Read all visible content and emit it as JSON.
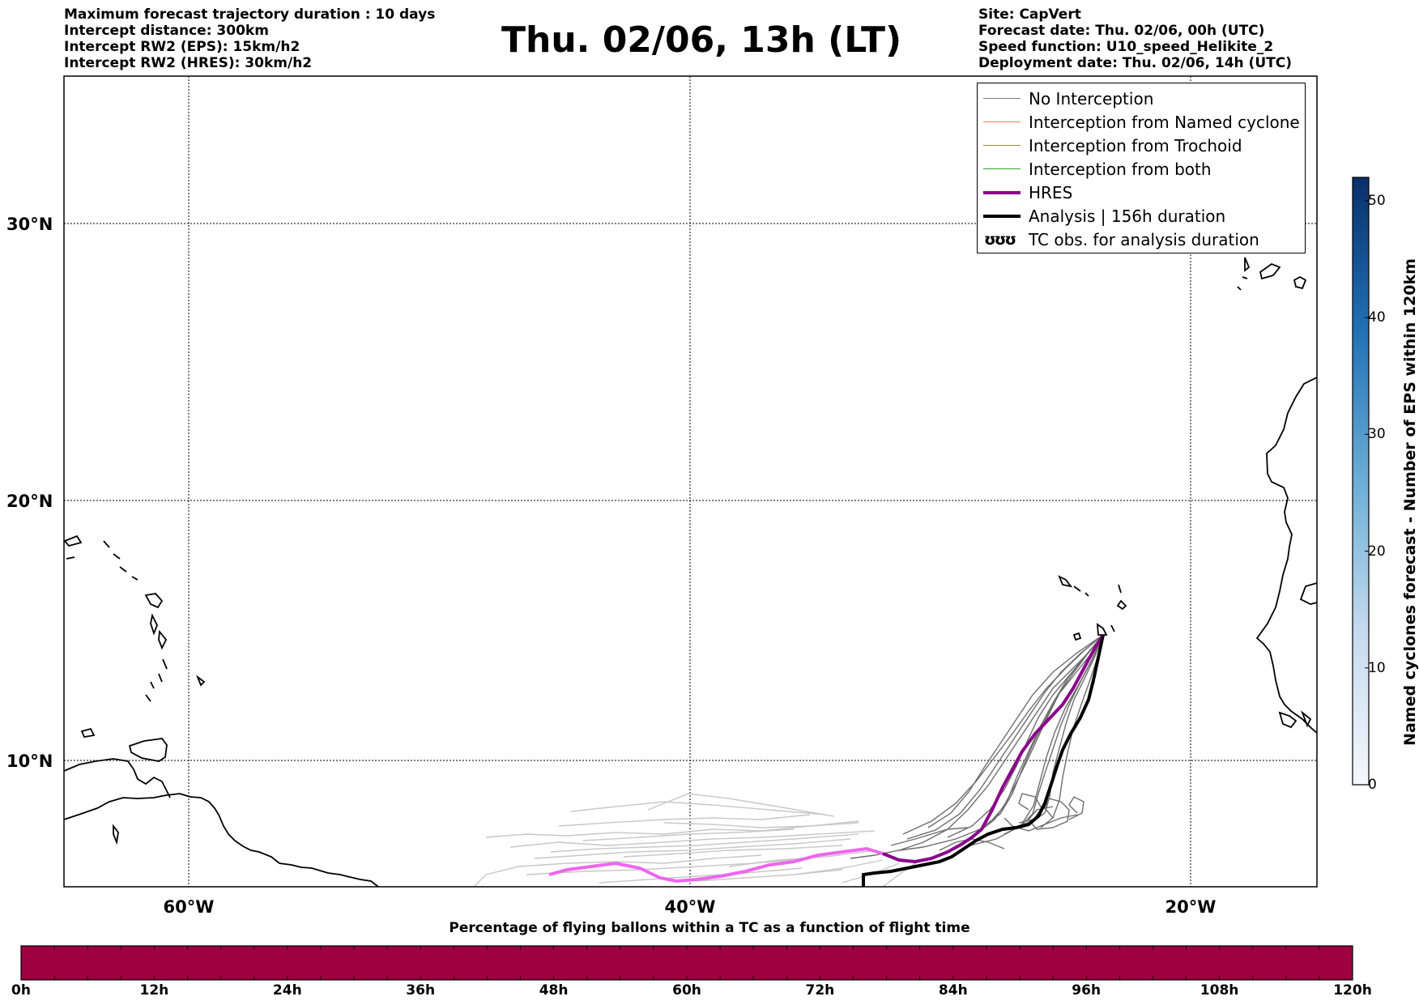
{
  "header_left": [
    "Maximum forecast trajectory duration : 10 days",
    "Intercept distance: 300km",
    "Intercept RW2 (EPS):  15km/h2",
    "Intercept RW2 (HRES): 30km/h2"
  ],
  "title": "Thu. 02/06, 13h (LT)",
  "header_right": [
    "Site: CapVert",
    "Forecast date: Thu. 02/06, 00h (UTC)",
    "Speed function: U10_speed_Helikite_2",
    "Deployment date: Thu. 02/06, 14h (UTC)"
  ],
  "map": {
    "lat_labels": [
      "30°N",
      "20°N",
      "10°N"
    ],
    "lon_labels": [
      "60°W",
      "40°W",
      "20°W"
    ],
    "lat_values": [
      30,
      20,
      10
    ],
    "lon_values": [
      -60,
      -40,
      -20
    ]
  },
  "legend": [
    {
      "label": "No Interception",
      "color": "#808080",
      "width": 1.5,
      "symbol": "line"
    },
    {
      "label": "Interception from Named cyclone",
      "color": "#ff7f50",
      "width": 1.5,
      "symbol": "line"
    },
    {
      "label": "Interception from Trochoid",
      "color": "#9a8a3a",
      "width": 1.5,
      "symbol": "line"
    },
    {
      "label": "Interception from both",
      "color": "#2ca02c",
      "width": 1.5,
      "symbol": "line"
    },
    {
      "label": "HRES",
      "color": "#8b008b",
      "width": 4,
      "symbol": "line"
    },
    {
      "label": "Analysis | 156h duration",
      "color": "#000000",
      "width": 4,
      "symbol": "line"
    },
    {
      "label": "TC obs. for analysis duration",
      "color": "#000000",
      "symbol": "tc",
      "glyph": "ʊʊʊ"
    }
  ],
  "bottom_colorbar": {
    "title": "Percentage of flying ballons within a TC as a function of flight time",
    "color": "#9e0040",
    "ticks": [
      "0h",
      "12h",
      "24h",
      "36h",
      "48h",
      "60h",
      "72h",
      "84h",
      "96h",
      "108h",
      "120h"
    ]
  },
  "side_colorbar": {
    "label": "Named cyclones forecast - Number of EPS within 120km",
    "ticks": [
      "0",
      "10",
      "20",
      "30",
      "40",
      "50"
    ],
    "max": 52
  }
}
